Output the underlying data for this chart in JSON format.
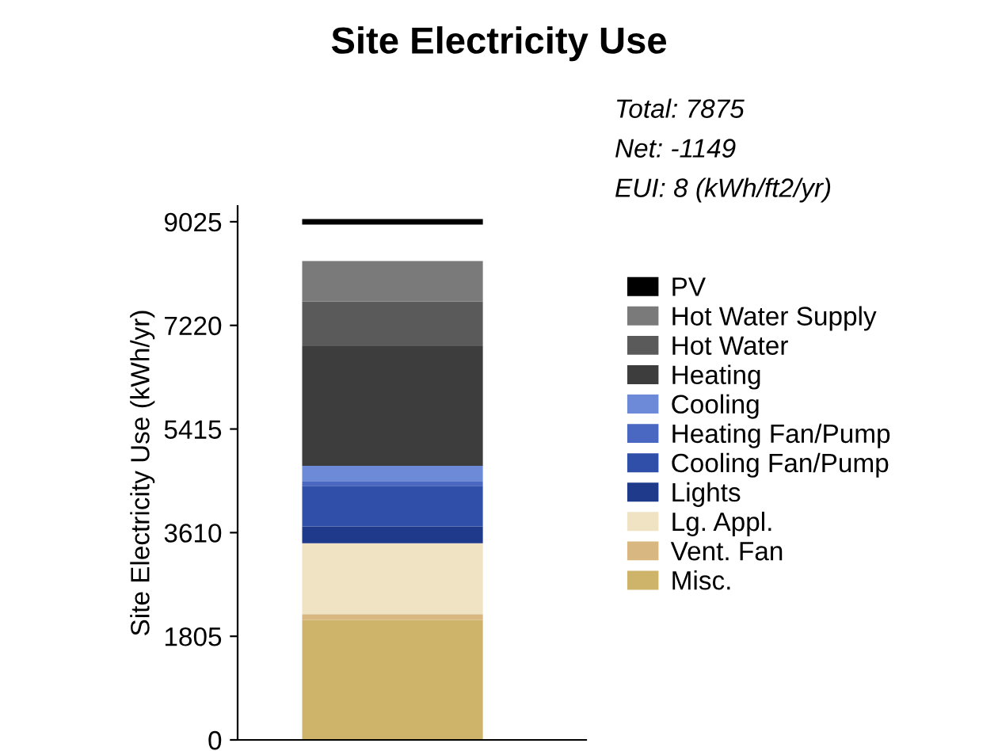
{
  "chart_data": {
    "type": "bar",
    "stacked": true,
    "title": "Site Electricity Use",
    "ylabel": "Site Electricity Use (kWh/yr)",
    "categories": [
      null
    ],
    "series": [
      {
        "name": "Misc.",
        "color": "#cdb46a",
        "values": [
          2092
        ]
      },
      {
        "name": "Vent. Fan",
        "color": "#d8b880",
        "values": [
          100
        ]
      },
      {
        "name": "Lg. Appl.",
        "color": "#efe3c4",
        "values": [
          1233
        ]
      },
      {
        "name": "Lights",
        "color": "#1f3a8a",
        "values": [
          292
        ]
      },
      {
        "name": "Cooling Fan/Pump",
        "color": "#2f4fa8",
        "values": [
          708
        ]
      },
      {
        "name": "Heating Fan/Pump",
        "color": "#4a67c2",
        "values": [
          83
        ]
      },
      {
        "name": "Cooling",
        "color": "#6d8ad8",
        "values": [
          267
        ]
      },
      {
        "name": "Heating",
        "color": "#3d3d3d",
        "values": [
          2083
        ]
      },
      {
        "name": "Hot Water",
        "color": "#5a5a5a",
        "values": [
          775
        ]
      },
      {
        "name": "Hot Water Supply",
        "color": "#7a7a7a",
        "values": [
          709
        ]
      }
    ],
    "ref_lines": [
      {
        "axis": "y",
        "value": 9025,
        "label": "PV",
        "color": "#000000"
      }
    ],
    "annotations": [
      "Total: 7875",
      "Net: -1149",
      "EUI: 8 (kWh/ft2/yr)"
    ],
    "ylim": [
      0,
      9300
    ],
    "yticks": [
      0,
      1805,
      3610,
      5415,
      7220,
      9025
    ],
    "grid": false,
    "legend": "right"
  }
}
